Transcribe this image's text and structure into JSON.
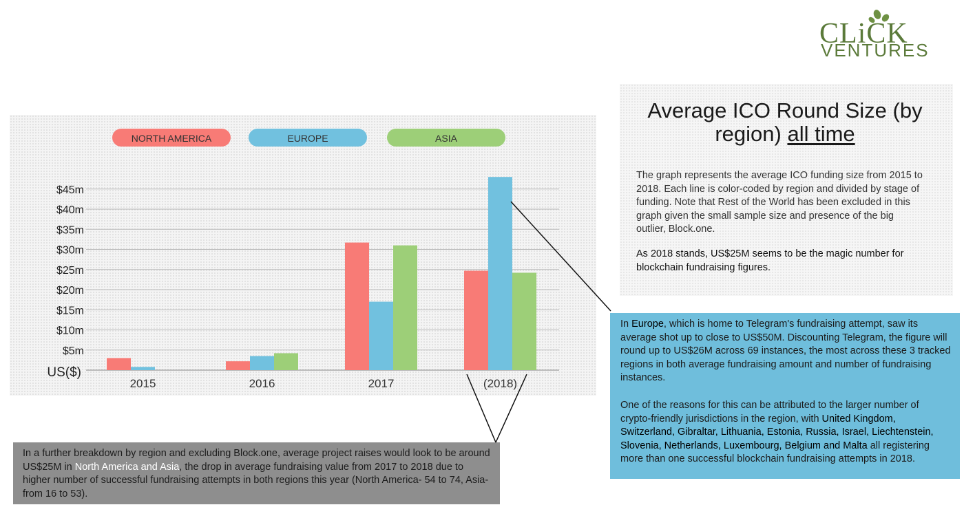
{
  "logo": {
    "word": "CLiCK",
    "sub": "VENTURES"
  },
  "title": {
    "main": "Average ICO Round Size (by region) ",
    "underlined": "all time"
  },
  "description": "The graph represents the average ICO funding size from 2015 to 2018. Each line is color-coded by region and divided by stage of funding. Note that Rest of the World has been excluded in this graph given the small sample size and presence of the big outlier, Block.one.",
  "description2": "As 2018 stands, US$25M seems to be the magic number for blockchain fundraising figures.",
  "europe_box": {
    "p1_before": "In ",
    "p1_region": "Europe",
    "p1_after": ", which is home to Telegram's fundraising attempt, saw its average shot up to close to US$50M. Discounting Telegram, the figure will round up to US$26M across 69 instances, the most across these 3 tracked regions in both average fundraising amount and number of fundraising instances.",
    "p2_before": "One of the reasons for this can be attributed to the larger number of crypto-friendly jurisdictions in the region, with ",
    "p2_countries": "United Kingdom, Switzerland, Gibraltar, Lithuania, Estonia, Russia, Israel, Liechtenstein, Slovenia, Netherlands, Luxembourg, Belgium and Malta",
    "p2_after": " all registering more than one successful blockchain fundraising attempts in 2018."
  },
  "gray_box": {
    "before": "In a further breakdown by region and excluding Block.one, average project raises would look to be around US$25M in ",
    "highlight": "North America and Asia",
    "after": ", the drop in average fundraising value from 2017 to 2018 due to higher number of successful fundraising attempts in both regions this year (North America- 54 to 74, Asia- from 16 to 53)."
  },
  "colors": {
    "north_america": "#f87b76",
    "europe": "#71c1df",
    "asia": "#9dcf78",
    "logo_green": "#5b7a3a"
  },
  "chart_data": {
    "type": "bar",
    "categories": [
      "2015",
      "2016",
      "2017",
      "(2018)"
    ],
    "series": [
      {
        "name": "NORTH AMERICA",
        "values": [
          3,
          2.2,
          31.7,
          24.7
        ]
      },
      {
        "name": "EUROPE",
        "values": [
          0.8,
          3.5,
          17,
          48
        ]
      },
      {
        "name": "ASIA",
        "values": [
          0,
          4.2,
          31,
          24.2
        ]
      }
    ],
    "yticks": [
      "US($)",
      "$5m",
      "$10m",
      "$15m",
      "$20m",
      "$25m",
      "$30m",
      "$35m",
      "$40m",
      "$45m"
    ],
    "ylim": [
      0,
      48
    ],
    "grid": true,
    "legend_placement": "top"
  }
}
